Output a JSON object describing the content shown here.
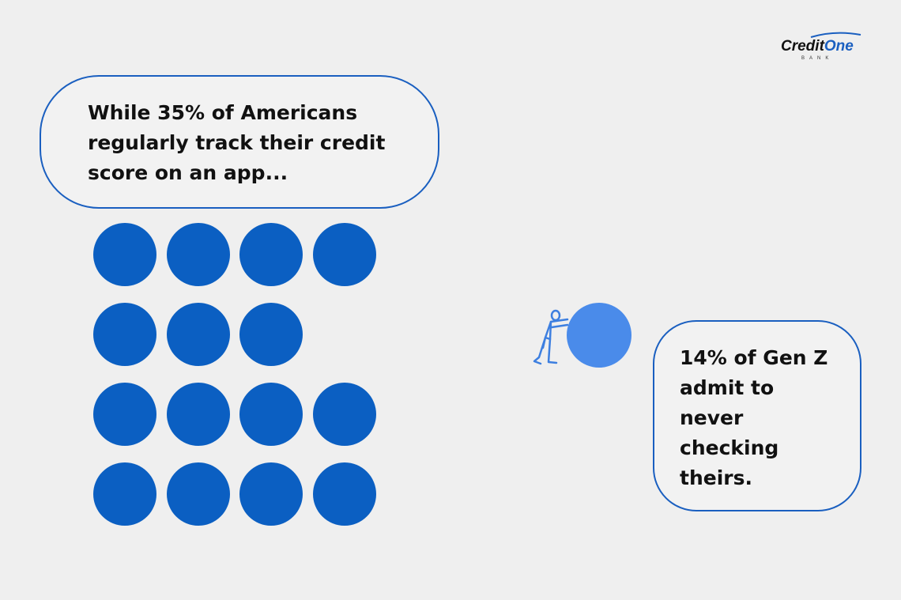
{
  "logo": {
    "name": "CreditOne",
    "sub": "BANK"
  },
  "stat_left": {
    "lines": [
      "While 35% of Americans",
      "regularly track their credit",
      "score on an app..."
    ]
  },
  "stat_right": {
    "lines": [
      "14% of Gen Z",
      "admit to",
      "never",
      "checking",
      "theirs."
    ]
  },
  "dot_rows": [
    4,
    3,
    4,
    4
  ],
  "colors": {
    "dot": "#0b5fc2",
    "ball": "#4a8bea",
    "border": "#1a5fc0",
    "background": "#efefef"
  },
  "icons": [
    "person-pushing-ball-icon"
  ]
}
